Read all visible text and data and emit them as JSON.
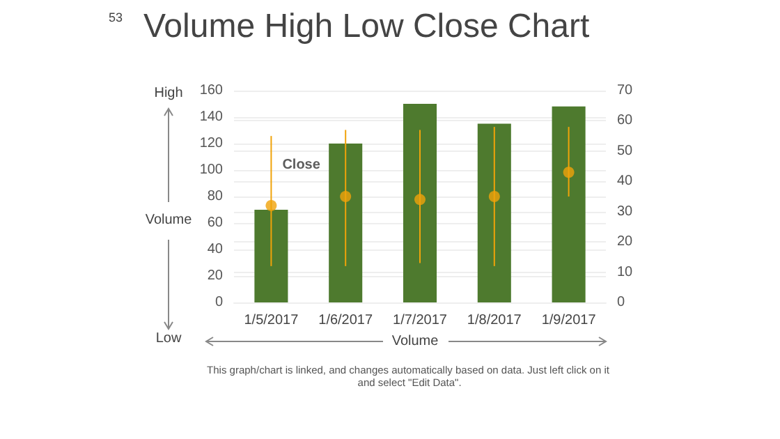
{
  "chart_data": {
    "type": "bar",
    "title": "Volume High Low Close Chart",
    "xlabel": "Volume",
    "ylabel": "Volume",
    "categories": [
      "1/5/2017",
      "1/6/2017",
      "1/7/2017",
      "1/8/2017",
      "1/9/2017"
    ],
    "series": [
      {
        "type": "bar",
        "color": "#4e7a2e",
        "values": [
          70,
          120,
          150,
          135,
          148
        ]
      },
      {
        "type": "scatter",
        "name": "Close",
        "axis": "y2",
        "color": "#f0a30a",
        "marker": "circle",
        "values": [
          32,
          35,
          34,
          35,
          43
        ],
        "errors": [
          [
            12,
            55
          ],
          [
            12,
            57
          ],
          [
            13,
            57
          ],
          [
            12,
            58
          ],
          [
            35,
            58
          ]
        ]
      }
    ],
    "ylim": [
      0,
      160
    ],
    "yticks": [
      0,
      20,
      40,
      60,
      80,
      100,
      120,
      140,
      160
    ],
    "y2lim": [
      0,
      70
    ],
    "y2ticks": [
      0,
      10,
      20,
      30,
      40,
      50,
      60,
      70
    ],
    "grid": "y",
    "legend": false,
    "annotations": [
      "53",
      "High",
      "Low",
      "This graph/chart is linked, and changes automatically based on data. Just left click on it and select \"Edit Data\"."
    ]
  }
}
